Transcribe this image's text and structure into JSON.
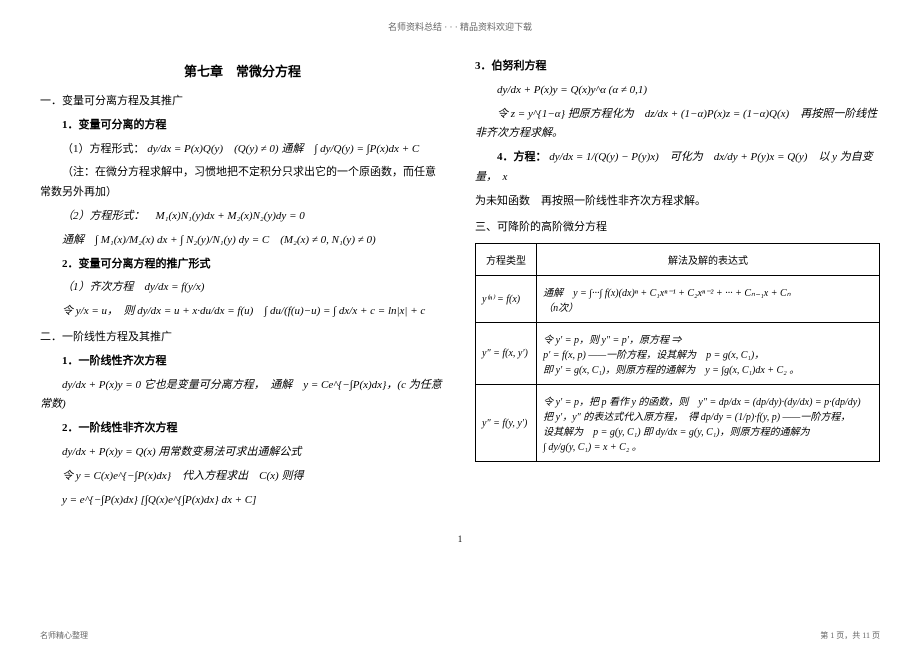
{
  "header_top": "名师资料总结 ·  ·  · 精品资料欢迎下载",
  "chapter_title": "第七章　常微分方程",
  "left": {
    "sec1_title": "一．变量可分离方程及其推广",
    "sub1_1": "1．变量可分离的方程",
    "item1_1": "（1）方程形式：",
    "item1_1_math": "dy/dx = P(x)Q(y)　(Q(y) ≠ 0) 通解　∫ dy/Q(y) = ∫P(x)dx + C",
    "note1": "（注：在微分方程求解中，习惯地把不定积分只求出它的一个原函数，而任意常数另外再加）",
    "item1_2": "（2）方程形式：　M₁(x)N₁(y)dx + M₂(x)N₂(y)dy = 0",
    "item1_2b": "通解　∫ M₁(x)/M₂(x) dx + ∫ N₂(y)/N₁(y) dy = C　(M₂(x) ≠ 0, N₁(y) ≠ 0)",
    "sub1_2": "2．变量可分离方程的推广形式",
    "item1_3": "（1）齐次方程　dy/dx = f(y/x)",
    "item1_3b": "令 y/x = u，　则 dy/dx = u + x·du/dx = f(u)　∫ du/(f(u)−u) = ∫ dx/x + c = ln|x| + c",
    "sec2_title": "二．一阶线性方程及其推广",
    "sub2_1": "1．一阶线性齐次方程",
    "item2_1": "dy/dx + P(x)y = 0 它也是变量可分离方程，　通解　y = Ce^{−∫P(x)dx}，(c 为任意常数)",
    "sub2_2": "2．一阶线性非齐次方程",
    "item2_2": "dy/dx + P(x)y = Q(x) 用常数变易法可求出通解公式",
    "item2_2b": "令 y = C(x)e^{−∫P(x)dx}　代入方程求出　C(x) 则得",
    "item2_2c": "y = e^{−∫P(x)dx} [∫Q(x)e^{∫P(x)dx} dx + C]"
  },
  "right": {
    "sub3": "3．伯努利方程",
    "item3_1": "dy/dx + P(x)y = Q(x)y^α (α ≠ 0,1)",
    "item3_2": "令 z = y^{1−α} 把原方程化为　dz/dx + (1−α)P(x)z = (1−α)Q(x)　再按照一阶线性非齐次方程求解。",
    "sub4": "4．方程：",
    "item4_1": "dy/dx = 1/(Q(y) − P(y)x)　可化为　dx/dy + P(y)x = Q(y)　以 y 为自变量，　x",
    "item4_2": "为未知函数　再按照一阶线性非齐次方程求解。",
    "sec3_title": "三、可降阶的高阶微分方程",
    "table": {
      "headers": [
        "方程类型",
        "解法及解的表达式"
      ],
      "rows": [
        {
          "type": "y⁽ⁿ⁾ = f(x)",
          "solution": "通解　y = ∫···∫ f(x)(dx)ⁿ + C₁xⁿ⁻¹ + C₂xⁿ⁻² + ··· + Cₙ₋₁x + Cₙ\n（n次）"
        },
        {
          "type": "y″ = f(x, y′)",
          "solution": "令 y′ = p，则 y″ = p′，原方程 ⇒\np′ = f(x, p) ——一阶方程，设其解为　p = g(x, C₁)，\n即 y′ = g(x, C₁)，则原方程的通解为　y = ∫g(x, C₁)dx + C₂ 。"
        },
        {
          "type": "y″ = f(y, y′)",
          "solution": "令 y′ = p，把 p 看作 y 的函数，则　y″ = dp/dx = (dp/dy)·(dy/dx) = p·(dp/dy)\n把 y′，y″ 的表达式代入原方程，　得 dp/dy = (1/p)·f(y, p) ——一阶方程，\n设其解为　p = g(y, C₁) 即 dy/dx = g(y, C₁)，则原方程的通解为\n∫ dy/g(y, C₁) = x + C₂ 。"
        }
      ]
    }
  },
  "page_num": "1",
  "footer_left": "名师精心整理",
  "footer_right": "第 1 页，共 11 页"
}
